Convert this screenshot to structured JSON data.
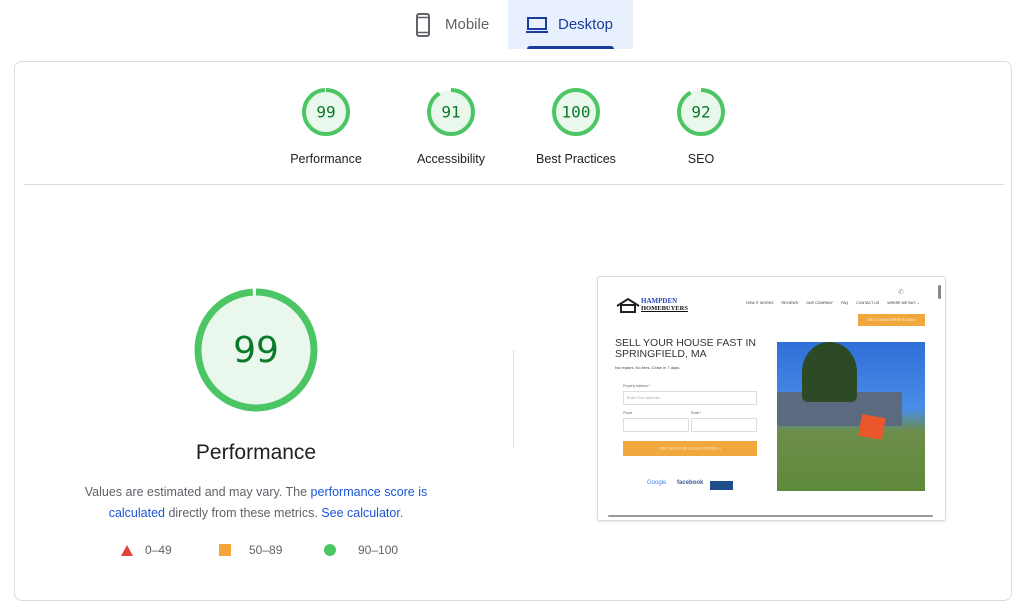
{
  "tabs": [
    {
      "label": "Mobile",
      "icon": "phone-icon",
      "selected": false
    },
    {
      "label": "Desktop",
      "icon": "laptop-icon",
      "selected": true
    }
  ],
  "colors": {
    "pass": "#4cc665",
    "pass_fill": "#eaf7ec",
    "average": "#f4a53a",
    "fail": "#e0453a",
    "link": "#1a56d6"
  },
  "gauges": [
    {
      "score": "99",
      "value": 99,
      "label": "Performance"
    },
    {
      "score": "91",
      "value": 91,
      "label": "Accessibility"
    },
    {
      "score": "100",
      "value": 100,
      "label": "Best Practices"
    },
    {
      "score": "92",
      "value": 92,
      "label": "SEO"
    }
  ],
  "main": {
    "score": "99",
    "value": 99,
    "label": "Performance",
    "desc_1": "Values are estimated and may vary. The ",
    "link_1": "performance score is calculated",
    "desc_2": " directly from these metrics. ",
    "link_2": "See calculator",
    "desc_3": ".",
    "legend": [
      {
        "icon": "triangle-icon",
        "label": "0–49"
      },
      {
        "icon": "square-icon",
        "label": "50–89"
      },
      {
        "icon": "circle-icon",
        "label": "90–100"
      }
    ]
  },
  "screenshot": {
    "logo_top": "HAMPDEN",
    "logo_bottom": "HOMEBUYERS",
    "nav": [
      "HOW IT WORKS",
      "REVIEWS",
      "OUR COMPANY",
      "FAQ",
      "CONTACT US",
      "WHERE WE BUY ⌄"
    ],
    "cta": "GET A CASH OFFER TODAY!",
    "headline": "SELL YOUR HOUSE FAST IN SPRINGFIELD, MA",
    "sub": "No repairs. No fees. Close in 7 days.",
    "address_label": "Property Address:*",
    "address_placeholder": "Enter Your Address",
    "phone_label": "Phone",
    "email_label": "Email:*",
    "submit": "GET MY FAIR CASH OFFER »",
    "badges": [
      "Google",
      "facebook"
    ]
  }
}
